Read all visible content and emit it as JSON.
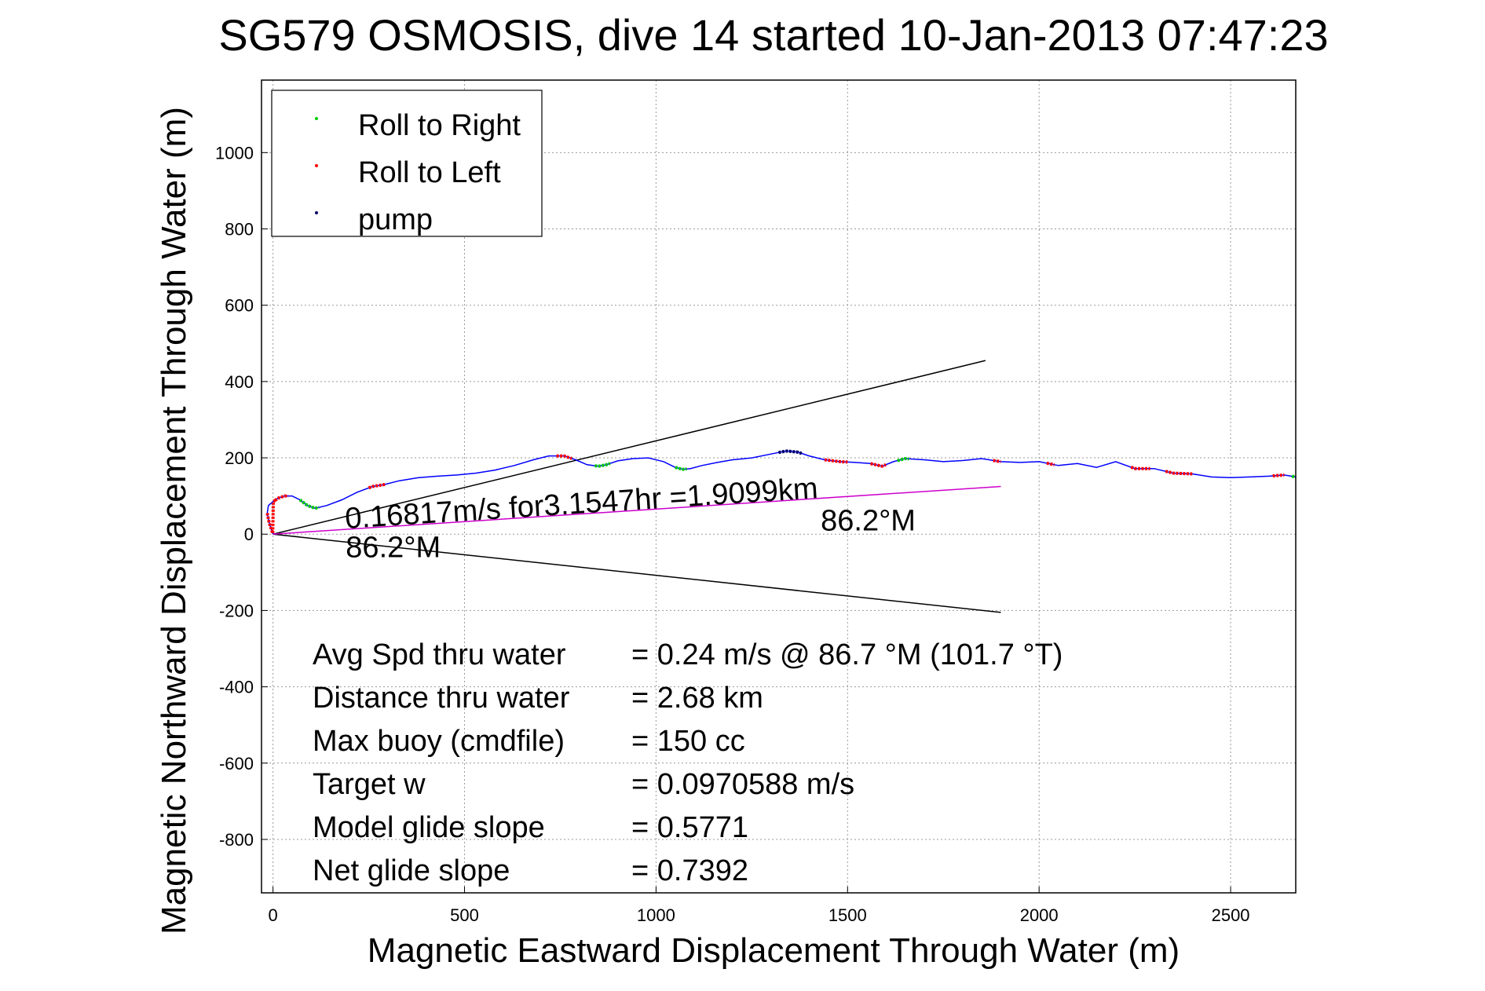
{
  "chart_data": {
    "type": "line",
    "title": "SG579 OSMOSIS, dive 14 started 10-Jan-2013 07:47:23",
    "xlabel": "Magnetic Eastward Displacement Through Water (m)",
    "ylabel": "Magnetic Northward Displacement Through Water (m)",
    "xlim": [
      -30,
      2670
    ],
    "ylim": [
      -940,
      1190
    ],
    "xticks": [
      0,
      500,
      1000,
      1500,
      2000,
      2500
    ],
    "yticks": [
      -800,
      -600,
      -400,
      -200,
      0,
      200,
      400,
      600,
      800,
      1000
    ],
    "grid": true,
    "legend": {
      "placement": "top-left",
      "entries": [
        {
          "label": "Roll to Right",
          "color": "#00cc00"
        },
        {
          "label": "Roll to Left",
          "color": "#ff0000"
        },
        {
          "label": "pump",
          "color": "#000066"
        }
      ]
    },
    "track": {
      "color": "#0000ff",
      "x": [
        0,
        -10,
        -15,
        -12,
        0,
        15,
        30,
        50,
        70,
        90,
        110,
        140,
        180,
        220,
        260,
        290,
        330,
        380,
        430,
        480,
        530,
        580,
        630,
        680,
        720,
        760,
        790,
        820,
        850,
        870,
        900,
        940,
        980,
        1020,
        1050,
        1070,
        1090,
        1120,
        1160,
        1200,
        1250,
        1300,
        1340,
        1370,
        1400,
        1440,
        1480,
        1520,
        1560,
        1590,
        1620,
        1650,
        1700,
        1750,
        1800,
        1850,
        1900,
        1950,
        2000,
        2050,
        2100,
        2150,
        2200,
        2250,
        2300,
        2350,
        2400,
        2450,
        2500,
        2550,
        2600,
        2640,
        2670
      ],
      "y": [
        0,
        30,
        55,
        75,
        85,
        95,
        100,
        100,
        90,
        75,
        68,
        75,
        90,
        110,
        125,
        130,
        140,
        148,
        152,
        155,
        160,
        168,
        180,
        195,
        205,
        205,
        195,
        182,
        178,
        182,
        192,
        198,
        200,
        190,
        175,
        170,
        172,
        180,
        188,
        195,
        200,
        210,
        218,
        215,
        205,
        195,
        190,
        188,
        185,
        178,
        190,
        198,
        195,
        190,
        193,
        198,
        190,
        188,
        190,
        180,
        185,
        175,
        190,
        172,
        172,
        160,
        158,
        150,
        148,
        150,
        152,
        155,
        150
      ]
    },
    "roll_right_segments": [
      [
        70,
        120
      ],
      [
        840,
        880
      ],
      [
        1050,
        1080
      ],
      [
        1630,
        1660
      ],
      [
        2660,
        2670
      ]
    ],
    "roll_left_segments": [
      [
        -15,
        5
      ],
      [
        5,
        40
      ],
      [
        250,
        295
      ],
      [
        740,
        780
      ],
      [
        1440,
        1500
      ],
      [
        1560,
        1600
      ],
      [
        1880,
        1900
      ],
      [
        2020,
        2040
      ],
      [
        2240,
        2290
      ],
      [
        2330,
        2400
      ],
      [
        2610,
        2640
      ]
    ],
    "pump_segments": [
      [
        1320,
        1380
      ]
    ],
    "fan_lines": [
      {
        "x": [
          0,
          1860
        ],
        "y": [
          0,
          455
        ],
        "color": "#000000"
      },
      {
        "x": [
          0,
          1900
        ],
        "y": [
          0,
          -205
        ],
        "color": "#000000"
      },
      {
        "x": [
          0,
          1900
        ],
        "y": [
          0,
          125
        ],
        "color": "#cc00cc"
      }
    ],
    "annotations": [
      {
        "text": "0.16817m/s for3.1547hr =1.9099km",
        "x": 190,
        "y": 15,
        "rotate": -3.7
      },
      {
        "text": "86.2°M",
        "x": 190,
        "y": -60
      },
      {
        "text": "86.2°M",
        "x": 1430,
        "y": 10
      }
    ],
    "stats": [
      {
        "label": "Avg Spd thru water",
        "value": "=  0.24 m/s @  86.7 °M (101.7 °T)"
      },
      {
        "label": "Distance thru water",
        "value": "=  2.68 km"
      },
      {
        "label": "Max buoy (cmdfile)",
        "value": "= 150 cc"
      },
      {
        "label": "Target w",
        "value": "= 0.0970588 m/s"
      },
      {
        "label": "Model glide slope",
        "value": "= 0.5771"
      },
      {
        "label": "Net glide slope",
        "value": "= 0.7392"
      }
    ]
  }
}
